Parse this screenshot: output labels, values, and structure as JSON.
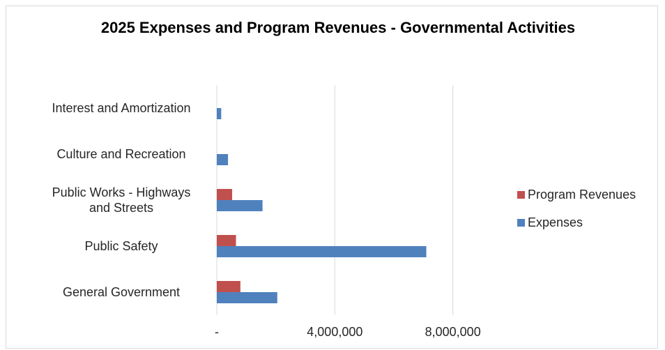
{
  "chart_data": {
    "type": "bar",
    "orientation": "horizontal",
    "title": "2025 Expenses and Program Revenues - Governmental Activities",
    "categories": [
      "General Government",
      "Public Safety",
      "Public Works - Highways and Streets",
      "Culture and Recreation",
      "Interest and Amortization"
    ],
    "category_lines": [
      [
        "General Government"
      ],
      [
        "Public Safety"
      ],
      [
        "Public Works - Highways",
        "and Streets"
      ],
      [
        "Culture and Recreation"
      ],
      [
        "Interest and Amortization"
      ]
    ],
    "series": [
      {
        "name": "Program Revenues",
        "color": "#c0504d",
        "values": [
          800000,
          650000,
          520000,
          0,
          0
        ]
      },
      {
        "name": "Expenses",
        "color": "#4f81bd",
        "values": [
          2050000,
          7100000,
          1550000,
          380000,
          150000
        ]
      }
    ],
    "xlim": [
      0,
      12000000
    ],
    "x_ticks": [
      0,
      4000000,
      8000000
    ],
    "x_tick_labels": [
      "-",
      "4,000,000",
      "8,000,000"
    ],
    "gridlines": "vertical",
    "legend_position": "right"
  }
}
